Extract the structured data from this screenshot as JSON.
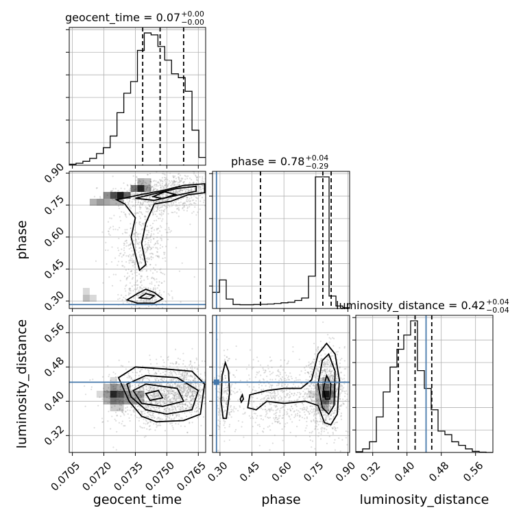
{
  "chart_data": {
    "type": "corner",
    "parameters": [
      "geocent_time",
      "phase",
      "luminosity_distance"
    ],
    "titles": [
      {
        "param": "geocent_time",
        "value": "0.07",
        "plus": "+0.00",
        "minus": "−0.00"
      },
      {
        "param": "phase",
        "value": "0.78",
        "plus": "+0.04",
        "minus": "−0.29"
      },
      {
        "param": "luminosity_distance",
        "value": "0.42",
        "plus": "+0.04",
        "minus": "−0.04"
      }
    ],
    "ranges": {
      "geocent_time": [
        0.07035,
        0.07685
      ],
      "phase": [
        0.265,
        0.908
      ],
      "luminosity_distance": [
        0.2805,
        0.6005
      ]
    },
    "ticks": {
      "geocent_time": [
        "0.0705",
        "0.0720",
        "0.0735",
        "0.0750",
        "0.0765"
      ],
      "phase": [
        "0.30",
        "0.45",
        "0.60",
        "0.75",
        "0.90"
      ],
      "luminosity_distance": [
        "0.32",
        "0.40",
        "0.48",
        "0.56"
      ]
    },
    "truths": {
      "geocent_time": null,
      "phase": 0.2836,
      "luminosity_distance": 0.4445
    },
    "quantiles": {
      "geocent_time": [
        0.07385,
        0.07468,
        0.0758
      ],
      "phase": [
        0.4899,
        0.7824,
        0.8214
      ],
      "luminosity_distance": [
        0.3797,
        0.4189,
        0.4578
      ]
    },
    "histograms": {
      "geocent_time": {
        "edges": [
          0.07035,
          0.070675,
          0.071,
          0.071325,
          0.07165,
          0.071975,
          0.0723,
          0.072625,
          0.07295,
          0.073275,
          0.0736,
          0.073925,
          0.07425,
          0.074575,
          0.0749,
          0.075225,
          0.07555,
          0.075875,
          0.0762,
          0.076525,
          0.07685
        ],
        "counts": [
          0.5,
          1,
          2,
          3.5,
          6,
          9,
          15,
          27,
          37,
          43,
          59,
          68,
          67,
          61,
          54,
          47,
          45,
          38,
          18,
          4
        ]
      },
      "phase": {
        "edges": [
          0.265,
          0.2972,
          0.3293,
          0.3615,
          0.3936,
          0.4258,
          0.458,
          0.4901,
          0.5223,
          0.5544,
          0.5866,
          0.6188,
          0.6509,
          0.6831,
          0.7152,
          0.7474,
          0.7796,
          0.8117,
          0.8439,
          0.876,
          0.908
        ],
        "counts": [
          6.5,
          11.5,
          3.8,
          1.6,
          1.5,
          1.5,
          1.6,
          1.7,
          1.8,
          2,
          2.3,
          2.5,
          3.2,
          4.2,
          13,
          53,
          53,
          5,
          1,
          0.3
        ]
      },
      "luminosity_distance": {
        "edges": [
          0.2805,
          0.2965,
          0.3125,
          0.3285,
          0.3445,
          0.3605,
          0.3765,
          0.3925,
          0.4085,
          0.4245,
          0.4405,
          0.4565,
          0.4725,
          0.4885,
          0.5045,
          0.5205,
          0.5365,
          0.5525,
          0.5685,
          0.5845,
          0.6005
        ],
        "counts": [
          0.2,
          1,
          3,
          10,
          17,
          24,
          29,
          33,
          37,
          23,
          18,
          12,
          6,
          5,
          3,
          2,
          1,
          0.3,
          0.1,
          0
        ]
      }
    },
    "pair_density": {
      "phase_vs_geocent_time": {
        "x_edges": [
          0.07035,
          0.070675,
          0.071,
          0.071325,
          0.07165,
          0.071975,
          0.0723,
          0.072625,
          0.07295,
          0.073275,
          0.0736,
          0.073925,
          0.07425,
          0.074575,
          0.0749,
          0.075225,
          0.07555,
          0.075875,
          0.0762,
          0.076525,
          0.07685
        ],
        "y_edges": [
          0.265,
          0.2972,
          0.3293,
          0.3615,
          0.3936,
          0.4258,
          0.458,
          0.4901,
          0.5223,
          0.5544,
          0.5866,
          0.6188,
          0.6509,
          0.6831,
          0.7152,
          0.7474,
          0.7796,
          0.8117,
          0.8439,
          0.876,
          0.908
        ],
        "cells": [
          [
            2,
            1,
            0.25
          ],
          [
            3,
            1,
            0.15
          ],
          [
            2,
            2,
            0.15
          ],
          [
            3,
            15,
            0.3
          ],
          [
            4,
            15,
            0.4
          ],
          [
            5,
            15,
            0.35
          ],
          [
            5,
            16,
            0.45
          ],
          [
            6,
            16,
            0.7
          ],
          [
            7,
            16,
            0.9
          ],
          [
            8,
            16,
            0.6
          ],
          [
            6,
            15,
            0.3
          ],
          [
            7,
            15,
            0.3
          ],
          [
            9,
            17,
            0.55
          ],
          [
            10,
            17,
            0.85
          ],
          [
            11,
            17,
            0.4
          ],
          [
            10,
            18,
            0.3
          ],
          [
            11,
            18,
            0.25
          ]
        ]
      },
      "luminosity_distance_vs_geocent_time": {
        "x_edges": [
          0.07035,
          0.070675,
          0.071,
          0.071325,
          0.07165,
          0.071975,
          0.0723,
          0.072625,
          0.07295,
          0.073275,
          0.0736,
          0.073925,
          0.07425,
          0.074575,
          0.0749,
          0.075225,
          0.07555,
          0.075875,
          0.0762,
          0.076525,
          0.07685
        ],
        "y_edges": [
          0.2805,
          0.2965,
          0.3125,
          0.3285,
          0.3445,
          0.3605,
          0.3765,
          0.3925,
          0.4085,
          0.4245,
          0.4405,
          0.4565,
          0.4725,
          0.4885,
          0.5045,
          0.5205,
          0.5365,
          0.5525,
          0.5685,
          0.5845,
          0.6005
        ],
        "cells": [
          [
            5,
            7,
            0.3
          ],
          [
            6,
            7,
            0.55
          ],
          [
            7,
            7,
            0.5
          ],
          [
            8,
            7,
            0.4
          ],
          [
            9,
            7,
            0.35
          ],
          [
            10,
            7,
            0.25
          ],
          [
            5,
            8,
            0.4
          ],
          [
            6,
            8,
            0.85
          ],
          [
            7,
            8,
            0.7
          ],
          [
            8,
            8,
            0.45
          ],
          [
            9,
            8,
            0.3
          ],
          [
            10,
            8,
            0.4
          ],
          [
            5,
            9,
            0.25
          ],
          [
            6,
            9,
            0.45
          ],
          [
            7,
            9,
            0.35
          ],
          [
            8,
            9,
            0.25
          ],
          [
            4,
            8,
            0.15
          ],
          [
            6,
            6,
            0.2
          ],
          [
            7,
            6,
            0.2
          ],
          [
            6,
            10,
            0.15
          ]
        ]
      },
      "luminosity_distance_vs_phase": {
        "x_edges": [
          0.265,
          0.2972,
          0.3293,
          0.3615,
          0.3936,
          0.4258,
          0.458,
          0.4901,
          0.5223,
          0.5544,
          0.5866,
          0.6188,
          0.6509,
          0.6831,
          0.7152,
          0.7474,
          0.7796,
          0.8117,
          0.8439,
          0.876,
          0.908
        ],
        "y_edges": [
          0.2805,
          0.2965,
          0.3125,
          0.3285,
          0.3445,
          0.3605,
          0.3765,
          0.3925,
          0.4085,
          0.4245,
          0.4405,
          0.4565,
          0.4725,
          0.4885,
          0.5045,
          0.5205,
          0.5365,
          0.5525,
          0.5685,
          0.5845,
          0.6005
        ],
        "cells": [
          [
            15,
            9,
            0.35
          ],
          [
            16,
            9,
            0.55
          ],
          [
            17,
            9,
            0.35
          ],
          [
            15,
            8,
            0.3
          ],
          [
            16,
            8,
            0.9
          ],
          [
            17,
            8,
            0.5
          ],
          [
            15,
            7,
            0.25
          ],
          [
            16,
            7,
            0.6
          ],
          [
            17,
            7,
            0.3
          ],
          [
            15,
            6,
            0.2
          ],
          [
            16,
            6,
            0.3
          ],
          [
            16,
            10,
            0.25
          ],
          [
            14,
            8,
            0.15
          ]
        ]
      }
    },
    "axis_labels": {
      "x": [
        "geocent_time",
        "phase",
        "luminosity_distance"
      ],
      "y": [
        "phase",
        "luminosity_distance"
      ]
    },
    "grid": true
  }
}
